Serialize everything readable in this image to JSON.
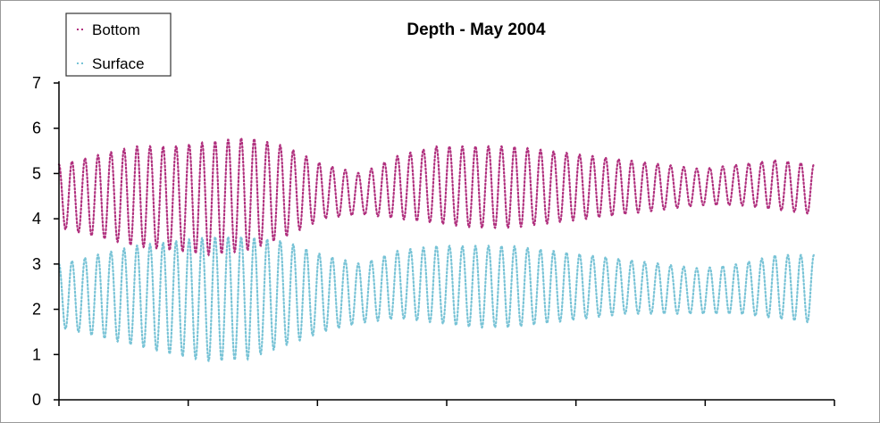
{
  "chart_data": {
    "type": "line",
    "title": "Depth - May 2004",
    "xlabel": "",
    "ylabel": "",
    "ylim": [
      0,
      7
    ],
    "yticks": [
      0,
      1,
      2,
      3,
      4,
      5,
      6,
      7
    ],
    "xtick_count": 7,
    "grid": false,
    "legend_position": "top-left",
    "line_style": "dotted",
    "series": [
      {
        "name": "Bottom",
        "color": "#b0307e",
        "cycles": 58,
        "envelope": {
          "x": [
            0.0,
            0.05,
            0.1,
            0.15,
            0.2,
            0.25,
            0.3,
            0.35,
            0.4,
            0.45,
            0.5,
            0.55,
            0.6,
            0.65,
            0.7,
            0.75,
            0.8,
            0.85,
            0.9,
            0.95,
            1.0
          ],
          "high": [
            5.2,
            5.4,
            5.6,
            5.6,
            5.7,
            5.8,
            5.6,
            5.2,
            5.0,
            5.4,
            5.6,
            5.6,
            5.6,
            5.5,
            5.4,
            5.3,
            5.2,
            5.1,
            5.2,
            5.3,
            5.2
          ],
          "low": [
            3.8,
            3.6,
            3.4,
            3.3,
            3.2,
            3.3,
            3.6,
            4.0,
            4.1,
            4.0,
            3.9,
            3.8,
            3.8,
            3.9,
            4.0,
            4.1,
            4.2,
            4.3,
            4.3,
            4.2,
            4.1
          ]
        }
      },
      {
        "name": "Surface",
        "color": "#78c3d6",
        "cycles": 58,
        "envelope": {
          "x": [
            0.0,
            0.05,
            0.1,
            0.15,
            0.2,
            0.25,
            0.3,
            0.35,
            0.4,
            0.45,
            0.5,
            0.55,
            0.6,
            0.65,
            0.7,
            0.75,
            0.8,
            0.85,
            0.9,
            0.95,
            1.0
          ],
          "high": [
            3.0,
            3.2,
            3.4,
            3.5,
            3.6,
            3.6,
            3.5,
            3.2,
            3.0,
            3.3,
            3.4,
            3.4,
            3.4,
            3.3,
            3.2,
            3.1,
            3.0,
            2.9,
            3.0,
            3.2,
            3.2
          ],
          "low": [
            1.6,
            1.4,
            1.2,
            1.0,
            0.85,
            0.9,
            1.2,
            1.5,
            1.7,
            1.8,
            1.7,
            1.6,
            1.6,
            1.7,
            1.8,
            1.9,
            1.9,
            1.9,
            1.9,
            1.8,
            1.7
          ]
        }
      }
    ]
  }
}
